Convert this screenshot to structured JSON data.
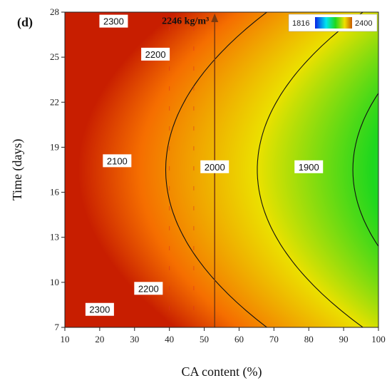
{
  "chart_data": {
    "type": "heatmap",
    "panel_label": "(d)",
    "xlabel": "CA content (%)",
    "ylabel": "Time (days)",
    "xlim": [
      10,
      100
    ],
    "ylim": [
      7,
      28
    ],
    "x_ticks": [
      10,
      20,
      30,
      40,
      50,
      60,
      70,
      80,
      90,
      100
    ],
    "y_ticks": [
      7,
      10,
      13,
      16,
      19,
      22,
      25,
      28
    ],
    "colorbar": {
      "min_label": "1816",
      "max_label": "2400",
      "min": 1816,
      "max": 2400,
      "placement": "top-right"
    },
    "contour_levels": [
      1900,
      2000,
      2100,
      2200,
      2300
    ],
    "contour_labels": [
      {
        "text": "2300",
        "x": 24,
        "y": 27.4
      },
      {
        "text": "2200",
        "x": 36,
        "y": 25.2
      },
      {
        "text": "2100",
        "x": 25,
        "y": 18.1
      },
      {
        "text": "2000",
        "x": 53,
        "y": 17.7
      },
      {
        "text": "1900",
        "x": 80,
        "y": 17.7
      },
      {
        "text": "2200",
        "x": 34,
        "y": 9.6
      },
      {
        "text": "2300",
        "x": 20,
        "y": 8.2
      }
    ],
    "annotation": {
      "text": "2246 kg/m³",
      "x": 53,
      "y": 27.4
    },
    "marker_line": {
      "x": 53
    },
    "grid": false
  }
}
